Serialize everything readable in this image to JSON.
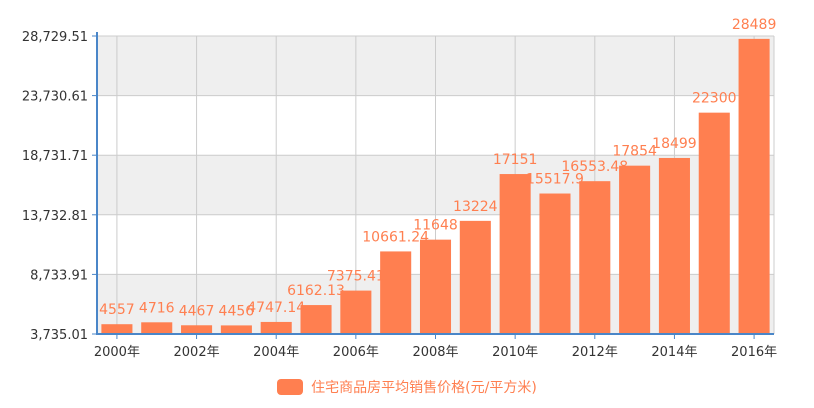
{
  "chart_data": {
    "type": "bar",
    "categories": [
      "2000年",
      "2001年",
      "2002年",
      "2003年",
      "2004年",
      "2005年",
      "2006年",
      "2007年",
      "2008年",
      "2009年",
      "2010年",
      "2011年",
      "2012年",
      "2013年",
      "2014年",
      "2015年",
      "2016年"
    ],
    "x_tick_labels": [
      "2000年",
      "2002年",
      "2004年",
      "2006年",
      "2008年",
      "2010年",
      "2012年",
      "2014年",
      "2016年"
    ],
    "series": [
      {
        "name": "住宅商品房平均销售价格(元/平方米)",
        "values": [
          4557,
          4716,
          4467,
          4456,
          4747.14,
          6162.13,
          7375.41,
          10661.24,
          11648,
          13224,
          17151,
          15517.9,
          16553.48,
          17854,
          18499,
          22300,
          28489
        ],
        "labels": [
          "4557",
          "4716",
          "4467",
          "4456",
          "4747.14",
          "6162.13",
          "7375.41",
          "10661.24",
          "11648",
          "13224",
          "17151",
          "15517.9",
          "16553.48",
          "17854",
          "18499",
          "22300",
          "28489"
        ]
      }
    ],
    "y_tick_labels": [
      "3,735.01",
      "8,733.91",
      "13,732.81",
      "18,731.71",
      "23,730.61",
      "28,729.51"
    ],
    "ylim": [
      3735.01,
      28729.51
    ],
    "title": "",
    "xlabel": "",
    "ylabel": "",
    "grid": true,
    "legend_position": "bottom",
    "colors": {
      "bar": "#ff7f50",
      "band": "#efefef",
      "grid": "#cccccc",
      "axis": "#4a86c8",
      "text": "#333333"
    }
  }
}
